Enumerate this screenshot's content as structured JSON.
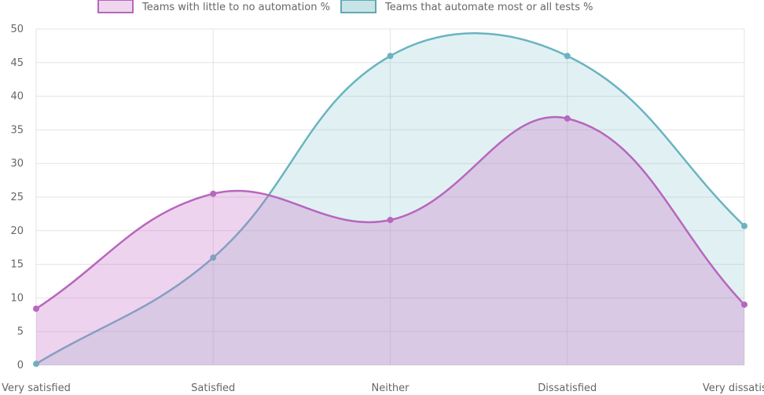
{
  "chart_data": {
    "type": "area",
    "categories": [
      "Very satisfied",
      "Satisfied",
      "Neither",
      "Dissatisfied",
      "Very dissatisfied"
    ],
    "series": [
      {
        "name": "Teams with little to no automation %",
        "values": [
          8.4,
          25.5,
          21.6,
          36.7,
          9.0
        ],
        "color": "#b866bd",
        "fill": "rgba(200,110,200,0.30)"
      },
      {
        "name": "Teams that automate most or all tests %",
        "values": [
          0.2,
          16.0,
          46.0,
          46.0,
          20.7
        ],
        "color": "#6ab4c0",
        "fill": "rgba(120,190,200,0.22)"
      }
    ],
    "yticks": [
      "0",
      "5",
      "10",
      "15",
      "20",
      "25",
      "30",
      "35",
      "40",
      "45",
      "50"
    ],
    "ylim": [
      0,
      50
    ],
    "grid": true,
    "legend": "top"
  }
}
